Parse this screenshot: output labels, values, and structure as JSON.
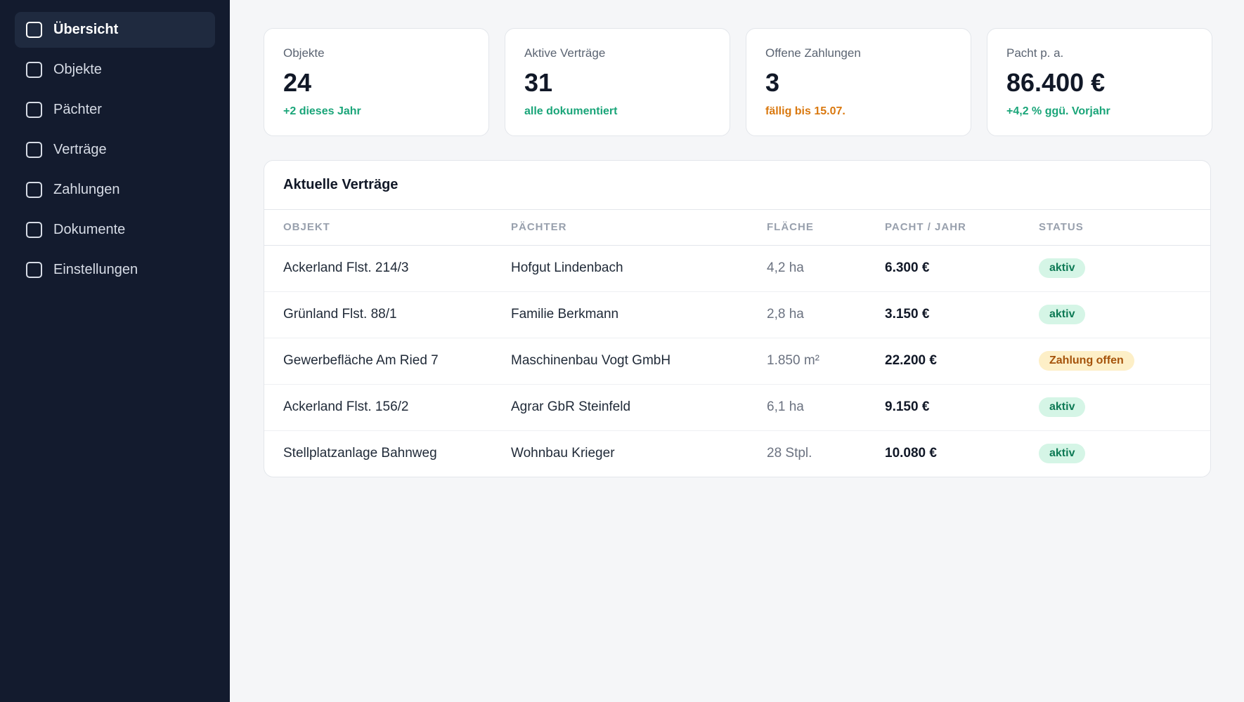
{
  "sidebar": {
    "items": [
      {
        "label": "Übersicht",
        "icon": "square-icon",
        "active": true
      },
      {
        "label": "Objekte",
        "icon": "square-icon"
      },
      {
        "label": "Pächter",
        "icon": "square-icon"
      },
      {
        "label": "Verträge",
        "icon": "square-icon"
      },
      {
        "label": "Zahlungen",
        "icon": "square-icon"
      },
      {
        "label": "Dokumente",
        "icon": "square-icon"
      },
      {
        "label": "Einstellungen",
        "icon": "square-icon"
      }
    ]
  },
  "stats": [
    {
      "label": "Objekte",
      "value": "24",
      "note": "+2 dieses Jahr",
      "note_color": "#1aa579"
    },
    {
      "label": "Aktive Verträge",
      "value": "31",
      "note": "alle dokumentiert",
      "note_color": "#1aa579"
    },
    {
      "label": "Offene Zahlungen",
      "value": "3",
      "note": "fällig bis 15.07.",
      "note_color": "#d9780f"
    },
    {
      "label": "Pacht p. a.",
      "value": "86.400 €",
      "note": "+4,2 % ggü. Vorjahr",
      "note_color": "#1aa579"
    }
  ],
  "contracts": {
    "title": "Aktuelle Verträge",
    "columns": [
      "OBJEKT",
      "PÄCHTER",
      "FLÄCHE",
      "PACHT / JAHR",
      "STATUS"
    ],
    "rows": [
      {
        "objekt": "Ackerland Flst. 214/3",
        "paechter": "Hofgut Lindenbach",
        "flaeche": "4,2 ha",
        "pacht": "6.300 €",
        "status": "aktiv",
        "status_type": "aktiv"
      },
      {
        "objekt": "Grünland Flst. 88/1",
        "paechter": "Familie Berkmann",
        "flaeche": "2,8 ha",
        "pacht": "3.150 €",
        "status": "aktiv",
        "status_type": "aktiv"
      },
      {
        "objekt": "Gewerbefläche Am Ried 7",
        "paechter": "Maschinenbau Vogt GmbH",
        "flaeche": "1.850 m²",
        "pacht": "22.200 €",
        "status": "Zahlung offen",
        "status_type": "offen"
      },
      {
        "objekt": "Ackerland Flst. 156/2",
        "paechter": "Agrar GbR Steinfeld",
        "flaeche": "6,1 ha",
        "pacht": "9.150 €",
        "status": "aktiv",
        "status_type": "aktiv"
      },
      {
        "objekt": "Stellplatzanlage Bahnweg",
        "paechter": "Wohnbau Krieger",
        "flaeche": "28 Stpl.",
        "pacht": "10.080 €",
        "status": "aktiv",
        "status_type": "aktiv"
      }
    ]
  },
  "colors": {
    "sidebar_bg": "#131b2e",
    "accent_green": "#1aa579",
    "accent_orange": "#d9780f"
  }
}
